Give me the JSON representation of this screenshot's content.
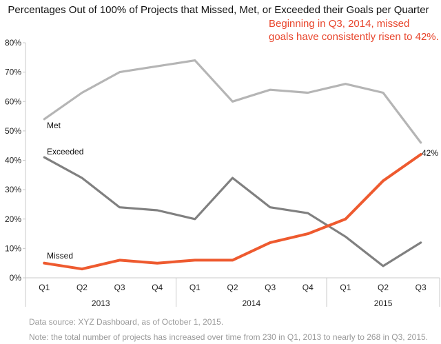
{
  "chart_data": {
    "type": "line",
    "title": "Percentages Out of 100% of Projects that Missed, Met, or Exceeded their Goals per Quarter",
    "annotation": {
      "lines": [
        "Beginning in Q3, 2014, missed",
        "goals have consistently risen to 42%."
      ],
      "color": "#e8452c"
    },
    "x": [
      "Q1",
      "Q2",
      "Q3",
      "Q4",
      "Q1",
      "Q2",
      "Q3",
      "Q4",
      "Q1",
      "Q2",
      "Q3"
    ],
    "year_groups": [
      {
        "label": "2013",
        "count": 4
      },
      {
        "label": "2014",
        "count": 4
      },
      {
        "label": "2015",
        "count": 3
      }
    ],
    "y_ticks": [
      "0%",
      "10%",
      "20%",
      "30%",
      "40%",
      "50%",
      "60%",
      "70%",
      "80%"
    ],
    "ylim": [
      0,
      80
    ],
    "grid": false,
    "series": [
      {
        "name": "Met",
        "color": "#b5b5b5",
        "values": [
          54,
          63,
          70,
          72,
          74,
          60,
          64,
          63,
          66,
          63,
          46
        ]
      },
      {
        "name": "Exceeded",
        "color": "#808080",
        "values": [
          41,
          34,
          24,
          23,
          20,
          34,
          24,
          22,
          14,
          4,
          12
        ]
      },
      {
        "name": "Missed",
        "color": "#ee5a2f",
        "values": [
          5,
          3,
          6,
          5,
          6,
          6,
          12,
          15,
          20,
          33,
          42
        ]
      }
    ],
    "end_label": {
      "text": "42%",
      "color": "#e8452c"
    },
    "notes": [
      "Data source: XYZ Dashboard, as of October 1, 2015.",
      "Note: the total number of projects has increased over time from 230 in Q1, 2013 to nearly to 268 in Q3, 2015."
    ]
  }
}
